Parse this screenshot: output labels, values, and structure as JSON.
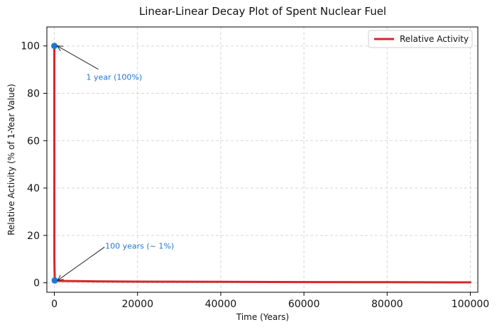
{
  "chart_data": {
    "type": "line",
    "title": "Linear-Linear Decay Plot of Spent Nuclear Fuel",
    "xlabel": "Time (Years)",
    "ylabel": "Relative Activity (% of 1-Year Value)",
    "xlim": [
      -1800,
      101800
    ],
    "ylim": [
      -4,
      108
    ],
    "xticks": [
      0,
      20000,
      40000,
      60000,
      80000,
      100000
    ],
    "xtick_labels": [
      "0",
      "20000",
      "40000",
      "60000",
      "80000",
      "100000"
    ],
    "yticks": [
      0,
      20,
      40,
      60,
      80,
      100
    ],
    "ytick_labels": [
      "0",
      "20",
      "40",
      "60",
      "80",
      "100"
    ],
    "grid": true,
    "legend_position": "top-right",
    "series": [
      {
        "name": "Relative Activity",
        "color": "#d62728",
        "x": [
          1,
          10,
          100,
          1000,
          10000,
          20000,
          40000,
          60000,
          80000,
          100000
        ],
        "y": [
          100,
          10,
          1,
          0.8,
          0.6,
          0.5,
          0.4,
          0.3,
          0.25,
          0.2
        ]
      }
    ],
    "markers": [
      {
        "x": 1,
        "y": 100,
        "color": "#1f77d4"
      },
      {
        "x": 100,
        "y": 1,
        "color": "#1f77d4"
      }
    ],
    "annotations": [
      {
        "text": "1 year (100%)",
        "x": 1,
        "y": 100,
        "color": "#1f77d4"
      },
      {
        "text": "100 years (~ 1%)",
        "x": 100,
        "y": 1,
        "color": "#1f77d4"
      }
    ]
  }
}
